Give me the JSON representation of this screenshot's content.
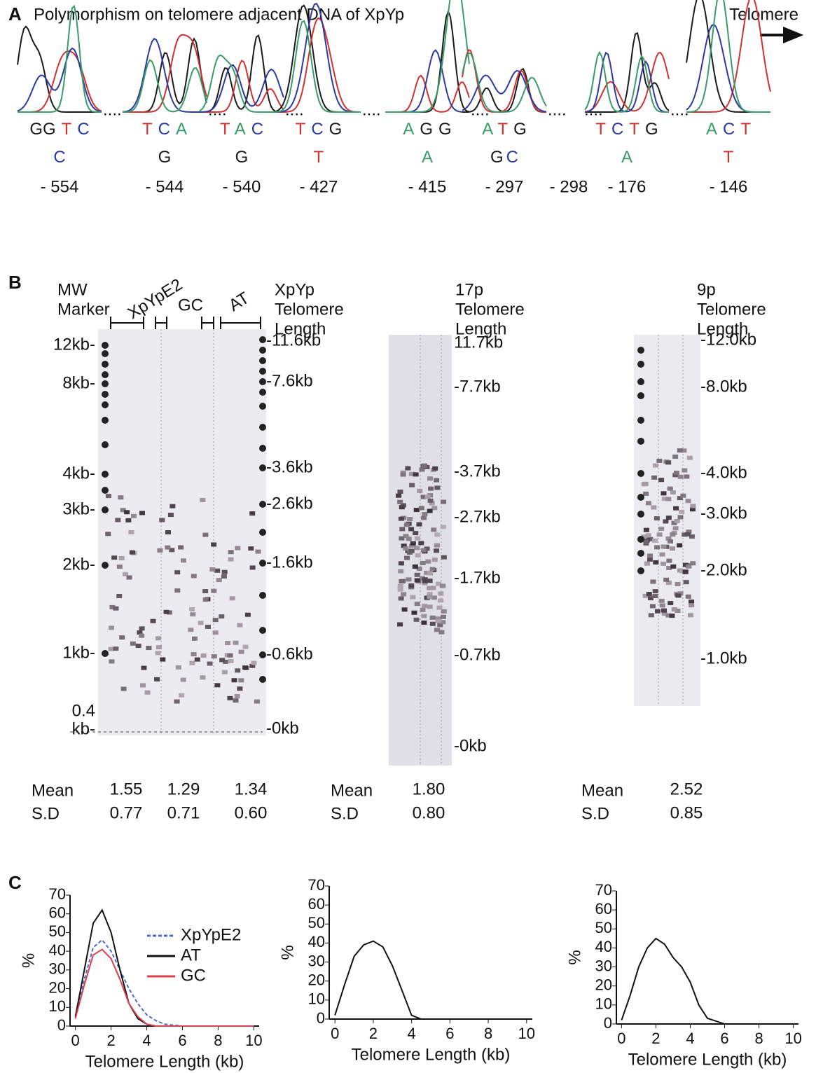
{
  "panel_a": {
    "label": "A",
    "title": "Polymorphism on telomere adjacent DNA of XpYp",
    "direction": "Telomere",
    "sites": [
      {
        "top": [
          "GG",
          "T",
          "C"
        ],
        "top_colors": [
          "#1a1a1a",
          "#d03030",
          "#2a3aa0"
        ],
        "bottom": [
          "C"
        ],
        "bottom_colors": [
          "#2a3aa0"
        ],
        "position": "- 554"
      },
      {
        "top": [
          "T",
          "C",
          "A"
        ],
        "top_colors": [
          "#d03030",
          "#2a3aa0",
          "#3a9a6a"
        ],
        "bottom": [
          "G"
        ],
        "bottom_colors": [
          "#1a1a1a"
        ],
        "position": "- 544"
      },
      {
        "top": [
          "T",
          "A",
          "C"
        ],
        "top_colors": [
          "#d03030",
          "#3a9a6a",
          "#2a3aa0"
        ],
        "bottom": [
          "G"
        ],
        "bottom_colors": [
          "#1a1a1a"
        ],
        "position": "- 540"
      },
      {
        "top": [
          "T",
          "C",
          "G"
        ],
        "top_colors": [
          "#d03030",
          "#2a3aa0",
          "#1a1a1a"
        ],
        "bottom": [
          "T"
        ],
        "bottom_colors": [
          "#d03030"
        ],
        "position": "- 427"
      },
      {
        "top": [
          "A",
          "G",
          "G"
        ],
        "top_colors": [
          "#3a9a6a",
          "#1a1a1a",
          "#1a1a1a"
        ],
        "bottom": [
          "A"
        ],
        "bottom_colors": [
          "#3a9a6a"
        ],
        "position": "- 415"
      },
      {
        "top": [
          "A",
          "T",
          "G"
        ],
        "top_colors": [
          "#3a9a6a",
          "#d03030",
          "#1a1a1a"
        ],
        "bottom": [
          "G",
          "C"
        ],
        "bottom_colors": [
          "#1a1a1a",
          "#2a3aa0"
        ],
        "position": "- 297"
      },
      {
        "top": [],
        "top_colors": [],
        "bottom": [],
        "bottom_colors": [],
        "position": "- 298"
      },
      {
        "top": [
          "T",
          "C",
          "T",
          "G"
        ],
        "top_colors": [
          "#d03030",
          "#2a3aa0",
          "#d03030",
          "#1a1a1a"
        ],
        "bottom": [
          "A"
        ],
        "bottom_colors": [
          "#3a9a6a"
        ],
        "position": "- 176"
      },
      {
        "top": [
          "A",
          "C",
          "T"
        ],
        "top_colors": [
          "#3a9a6a",
          "#2a3aa0",
          "#d03030"
        ],
        "bottom": [
          "T"
        ],
        "bottom_colors": [
          "#d03030"
        ],
        "position": "- 146"
      }
    ]
  },
  "panel_b": {
    "label": "B",
    "columns": {
      "marker": [
        "MW",
        "Marker"
      ],
      "xpype2": "XpYpE2",
      "gc": "GC",
      "at": "AT",
      "xpyp": [
        "XpYp",
        "Telomere",
        "Length"
      ],
      "p17": [
        "17p",
        "Telomere",
        "Length"
      ],
      "p9": [
        "9p",
        "Telomere",
        "Length"
      ]
    },
    "marker_labels": [
      "12kb-",
      "8kb-",
      "4kb-",
      "3kb-",
      "2kb-",
      "1kb-"
    ],
    "marker_bottom": [
      "0.4",
      "kb-"
    ],
    "xpyp_labels": [
      "-11.6kb",
      "-7.6kb",
      "-3.6kb",
      "-2.6kb",
      "-1.6kb",
      "-0.6kb",
      "-0kb"
    ],
    "p17_labels": [
      "11.7kb",
      "-7.7kb",
      "-3.7kb",
      "-2.7kb",
      "-1.7kb",
      "-0.7kb",
      "-0kb"
    ],
    "p9_labels": [
      "-12.0kb",
      "-8.0kb",
      "-4.0kb",
      "-3.0kb",
      "-2.0kb",
      "-1.0kb"
    ],
    "stats": {
      "mean_label": "Mean",
      "sd_label": "S.D",
      "xpyp": {
        "mean": [
          "1.55",
          "1.29",
          "1.34"
        ],
        "sd": [
          "0.77",
          "0.71",
          "0.60"
        ]
      },
      "p17": {
        "mean": [
          "1.80"
        ],
        "sd": [
          "0.80"
        ]
      },
      "p9": {
        "mean": [
          "2.52"
        ],
        "sd": [
          "0.85"
        ]
      }
    }
  },
  "panel_c": {
    "label": "C"
  },
  "chart_data": [
    {
      "type": "line",
      "x": [
        0,
        0.5,
        1,
        1.5,
        2,
        2.5,
        3,
        3.5,
        4,
        4.5,
        5,
        6,
        8,
        10
      ],
      "series": [
        {
          "name": "XpYpE2",
          "color": "#4a6ad0",
          "dash": true,
          "values": [
            5,
            25,
            42,
            46,
            40,
            30,
            20,
            12,
            6,
            3,
            1,
            0,
            0,
            0
          ]
        },
        {
          "name": "AT",
          "color": "#111111",
          "values": [
            5,
            30,
            55,
            62,
            50,
            30,
            12,
            4,
            1,
            0,
            0,
            0,
            0,
            0
          ]
        },
        {
          "name": "GC",
          "color": "#d84050",
          "values": [
            4,
            22,
            38,
            41,
            36,
            25,
            12,
            5,
            1,
            0,
            0,
            0,
            0,
            0
          ]
        }
      ],
      "xlim": [
        -0.3,
        10.3
      ],
      "ylim": [
        0,
        70
      ],
      "xticks": [
        0,
        2,
        4,
        6,
        8,
        10
      ],
      "yticks": [
        0,
        10,
        20,
        30,
        40,
        50,
        60,
        70
      ],
      "xlabel": "Telomere Length (kb)",
      "ylabel": "%",
      "legend": "upper-right"
    },
    {
      "type": "line",
      "x": [
        0,
        0.5,
        1,
        1.5,
        2,
        2.5,
        3,
        3.5,
        4,
        4.5,
        5,
        6,
        8,
        10
      ],
      "color": "#111111",
      "values": [
        2,
        18,
        33,
        39,
        41,
        38,
        28,
        15,
        2,
        0,
        0,
        0,
        0,
        0
      ],
      "xlim": [
        -0.3,
        10.3
      ],
      "ylim": [
        0,
        70
      ],
      "xticks": [
        0,
        2,
        4,
        6,
        8,
        10
      ],
      "yticks": [
        0,
        10,
        20,
        30,
        40,
        50,
        60,
        70
      ],
      "xlabel": "Telomere Length (kb)",
      "ylabel": "%"
    },
    {
      "type": "line",
      "x": [
        0,
        0.5,
        1,
        1.5,
        2,
        2.5,
        3,
        3.5,
        4,
        4.5,
        5,
        6,
        8,
        10
      ],
      "color": "#111111",
      "values": [
        2,
        15,
        30,
        40,
        45,
        42,
        35,
        30,
        22,
        10,
        3,
        0,
        0,
        0
      ],
      "xlim": [
        -0.3,
        10.3
      ],
      "ylim": [
        0,
        70
      ],
      "xticks": [
        0,
        2,
        4,
        6,
        8,
        10
      ],
      "yticks": [
        0,
        10,
        20,
        30,
        40,
        50,
        60,
        70
      ],
      "xlabel": "Telomere Length (kb)",
      "ylabel": "%"
    }
  ]
}
